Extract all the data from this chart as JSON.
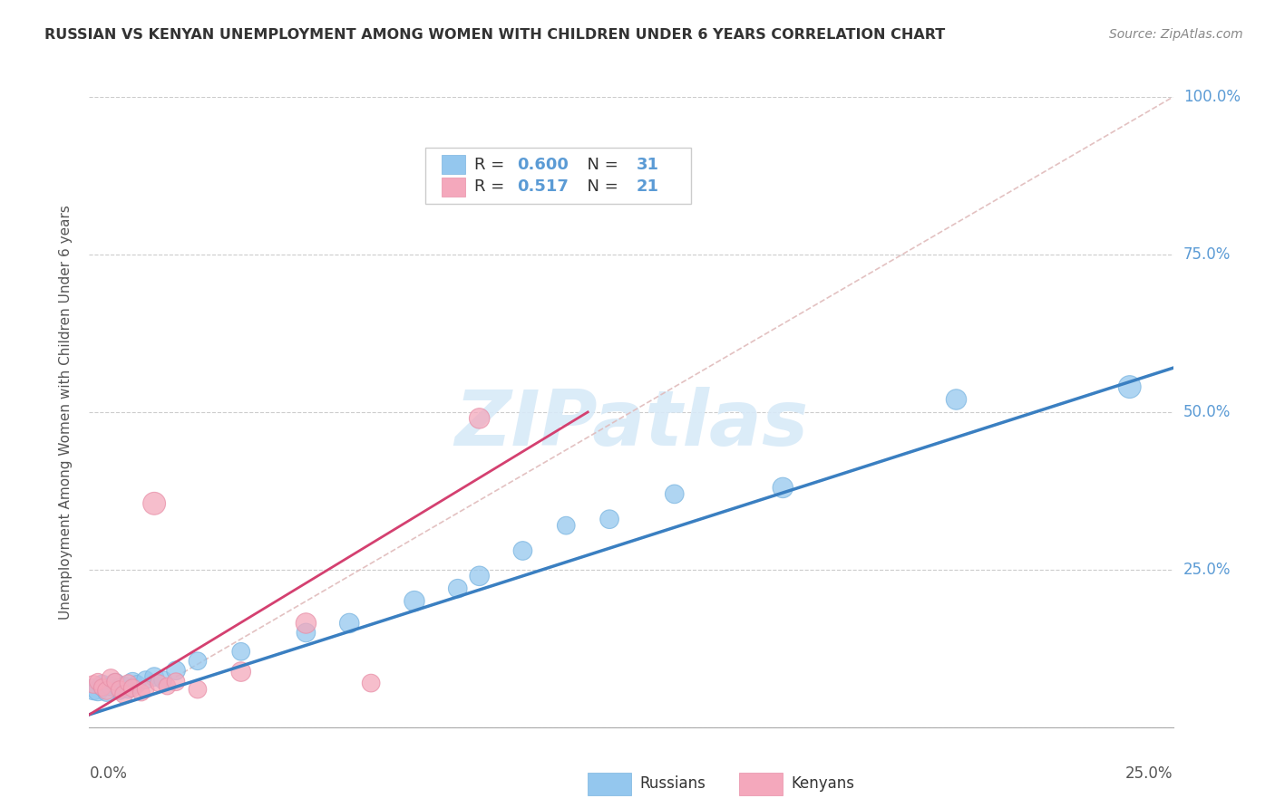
{
  "title": "RUSSIAN VS KENYAN UNEMPLOYMENT AMONG WOMEN WITH CHILDREN UNDER 6 YEARS CORRELATION CHART",
  "source": "Source: ZipAtlas.com",
  "ylabel": "Unemployment Among Women with Children Under 6 years",
  "legend_russians": "Russians",
  "legend_kenyans": "Kenyans",
  "russian_R": "0.600",
  "russian_N": "31",
  "kenyan_R": "0.517",
  "kenyan_N": "21",
  "russian_color": "#94C7EE",
  "kenyan_color": "#F4A8BC",
  "russian_edge_color": "#7AB5E0",
  "kenyan_edge_color": "#E890A8",
  "russian_line_color": "#3A7FC1",
  "kenyan_line_color": "#D44070",
  "diag_color": "#E0BBBB",
  "background_color": "#FFFFFF",
  "grid_color": "#CCCCCC",
  "ytick_color": "#5B9BD5",
  "watermark_color": "#D8EAF8",
  "title_color": "#333333",
  "source_color": "#888888",
  "legend_text_color": "#333333",
  "legend_num_color": "#5B9BD5",
  "xlim": [
    0.0,
    0.25
  ],
  "ylim": [
    0.0,
    1.0
  ],
  "yticks": [
    0.0,
    0.25,
    0.5,
    0.75,
    1.0
  ],
  "ytick_labels": [
    "",
    "25.0%",
    "50.0%",
    "75.0%",
    "100.0%"
  ],
  "russian_line_x": [
    0.0,
    0.25
  ],
  "russian_line_y": [
    0.02,
    0.57
  ],
  "kenyan_line_x": [
    0.0,
    0.115
  ],
  "kenyan_line_y": [
    0.02,
    0.5
  ],
  "diag_line_x": [
    0.02,
    0.25
  ],
  "diag_line_y": [
    0.08,
    1.0
  ],
  "russian_points_x": [
    0.001,
    0.002,
    0.003,
    0.003,
    0.004,
    0.005,
    0.006,
    0.007,
    0.007,
    0.008,
    0.009,
    0.01,
    0.011,
    0.013,
    0.015,
    0.017,
    0.02,
    0.025,
    0.035,
    0.05,
    0.06,
    0.075,
    0.085,
    0.09,
    0.1,
    0.11,
    0.12,
    0.135,
    0.16,
    0.2,
    0.24
  ],
  "russian_points_y": [
    0.06,
    0.058,
    0.065,
    0.068,
    0.055,
    0.065,
    0.07,
    0.062,
    0.058,
    0.065,
    0.06,
    0.072,
    0.068,
    0.075,
    0.08,
    0.075,
    0.09,
    0.105,
    0.12,
    0.15,
    0.165,
    0.2,
    0.22,
    0.24,
    0.28,
    0.32,
    0.33,
    0.37,
    0.38,
    0.52,
    0.54
  ],
  "russian_sizes": [
    280,
    260,
    240,
    220,
    200,
    220,
    240,
    220,
    200,
    220,
    200,
    220,
    200,
    200,
    220,
    200,
    220,
    200,
    200,
    220,
    240,
    260,
    220,
    240,
    220,
    200,
    220,
    220,
    260,
    260,
    320
  ],
  "kenyan_points_x": [
    0.001,
    0.002,
    0.003,
    0.004,
    0.005,
    0.006,
    0.007,
    0.008,
    0.009,
    0.01,
    0.012,
    0.013,
    0.015,
    0.016,
    0.018,
    0.02,
    0.025,
    0.035,
    0.05,
    0.065,
    0.09
  ],
  "kenyan_points_y": [
    0.068,
    0.072,
    0.063,
    0.058,
    0.078,
    0.072,
    0.06,
    0.052,
    0.07,
    0.062,
    0.055,
    0.06,
    0.355,
    0.07,
    0.065,
    0.072,
    0.06,
    0.088,
    0.165,
    0.07,
    0.49
  ],
  "kenyan_sizes": [
    200,
    180,
    180,
    200,
    200,
    180,
    180,
    200,
    180,
    200,
    180,
    180,
    320,
    180,
    180,
    200,
    200,
    240,
    260,
    200,
    260
  ]
}
